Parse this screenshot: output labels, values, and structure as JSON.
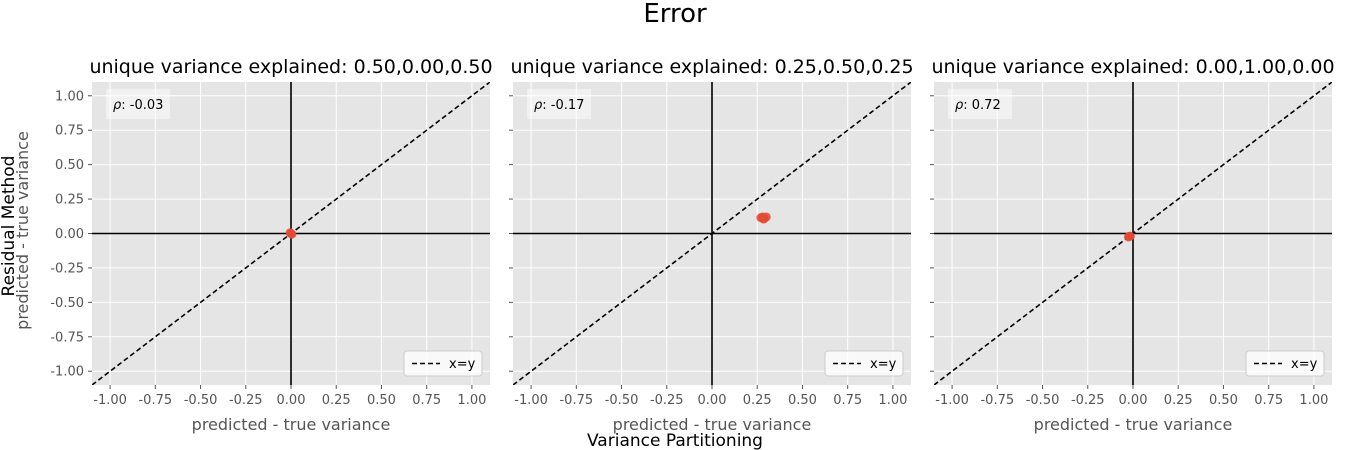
{
  "figure": {
    "suptitle": "Error",
    "xlabel": "Variance Partitioning",
    "ylabel": "Residual Method"
  },
  "colors": {
    "panel_bg": "#e5e5e5",
    "grid": "#ffffff",
    "marker": "#e24a33",
    "axis_line": "#000000",
    "tick_text": "#555555"
  },
  "chart_data": [
    {
      "type": "scatter",
      "title": "unique variance explained: 0.50,0.00,0.50",
      "xlabel": "predicted - true variance",
      "ylabel": "predicted - true variance",
      "xlim": [
        -1.1,
        1.1
      ],
      "ylim": [
        -1.1,
        1.1
      ],
      "xticks": [
        "-1.00",
        "-0.75",
        "-0.50",
        "-0.25",
        "0.00",
        "0.25",
        "0.50",
        "0.75",
        "1.00"
      ],
      "yticks": [
        "-1.00",
        "-0.75",
        "-0.50",
        "-0.25",
        "0.00",
        "0.25",
        "0.50",
        "0.75",
        "1.00"
      ],
      "points": [
        {
          "x": 0.0,
          "y": 0.0
        },
        {
          "x": 0.005,
          "y": -0.005
        },
        {
          "x": -0.005,
          "y": 0.005
        }
      ],
      "annotation": {
        "label": "ρ",
        "value": ": -0.03"
      },
      "legend": {
        "entries": [
          "x=y"
        ],
        "position": "lower-right"
      },
      "grid": true
    },
    {
      "type": "scatter",
      "title": "unique variance explained: 0.25,0.50,0.25",
      "xlabel": "predicted - true variance",
      "ylabel": "",
      "xlim": [
        -1.1,
        1.1
      ],
      "ylim": [
        -1.1,
        1.1
      ],
      "xticks": [
        "-1.00",
        "-0.75",
        "-0.50",
        "-0.25",
        "0.00",
        "0.25",
        "0.50",
        "0.75",
        "1.00"
      ],
      "yticks": [],
      "points": [
        {
          "x": 0.28,
          "y": 0.12
        },
        {
          "x": 0.29,
          "y": 0.11
        },
        {
          "x": 0.27,
          "y": 0.115
        },
        {
          "x": 0.3,
          "y": 0.12
        },
        {
          "x": 0.285,
          "y": 0.105
        }
      ],
      "annotation": {
        "label": "ρ",
        "value": ": -0.17"
      },
      "legend": {
        "entries": [
          "x=y"
        ],
        "position": "lower-right"
      },
      "grid": true
    },
    {
      "type": "scatter",
      "title": "unique variance explained: 0.00,1.00,0.00",
      "xlabel": "predicted - true variance",
      "ylabel": "",
      "xlim": [
        -1.1,
        1.1
      ],
      "ylim": [
        -1.1,
        1.1
      ],
      "xticks": [
        "-1.00",
        "-0.75",
        "-0.50",
        "-0.25",
        "0.00",
        "0.25",
        "0.50",
        "0.75",
        "1.00"
      ],
      "yticks": [],
      "points": [
        {
          "x": -0.02,
          "y": -0.02
        },
        {
          "x": -0.025,
          "y": -0.025
        },
        {
          "x": -0.015,
          "y": -0.02
        }
      ],
      "annotation": {
        "label": "ρ",
        "value": ": 0.72"
      },
      "legend": {
        "entries": [
          "x=y"
        ],
        "position": "lower-right"
      },
      "grid": true
    }
  ]
}
